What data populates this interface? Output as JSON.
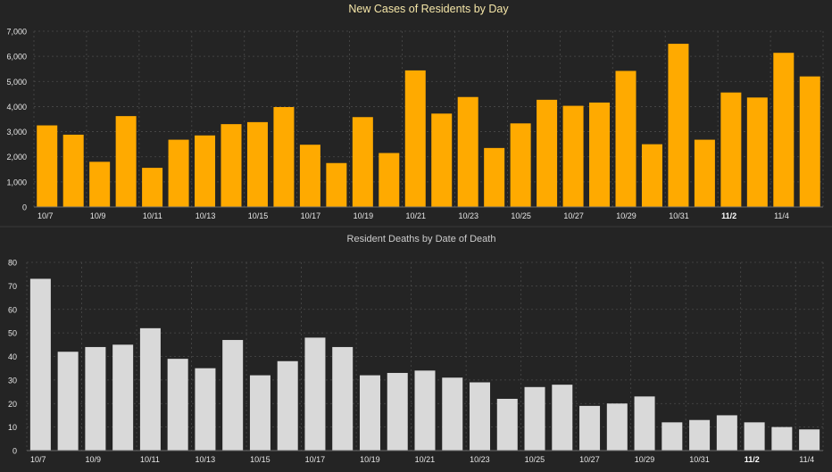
{
  "chart_data": [
    {
      "type": "bar",
      "title": "New Cases of Residents by Day",
      "xlabel": "",
      "ylabel": "",
      "ylim": [
        0,
        7000
      ],
      "yticks": [
        0,
        1000,
        2000,
        3000,
        4000,
        5000,
        6000,
        7000
      ],
      "ytick_labels": [
        "0",
        "1,000",
        "2,000",
        "3,000",
        "4,000",
        "5,000",
        "6,000",
        "7,000"
      ],
      "grid": true,
      "bar_color": "#FFAA00",
      "title_color": "#F5E6A8",
      "categories": [
        "10/7",
        "10/8",
        "10/9",
        "10/10",
        "10/11",
        "10/12",
        "10/13",
        "10/14",
        "10/15",
        "10/16",
        "10/17",
        "10/18",
        "10/19",
        "10/20",
        "10/21",
        "10/22",
        "10/23",
        "10/24",
        "10/25",
        "10/26",
        "10/27",
        "10/28",
        "10/29",
        "10/30",
        "10/31",
        "11/1",
        "11/2",
        "11/3",
        "11/4",
        "11/5"
      ],
      "values": [
        3250,
        2880,
        1800,
        3620,
        1560,
        2680,
        2850,
        3300,
        3380,
        3980,
        2480,
        1750,
        3580,
        2150,
        5440,
        3720,
        4380,
        2350,
        3330,
        4270,
        4030,
        4160,
        5420,
        2500,
        6500,
        2680,
        4560,
        4360,
        6140,
        5200
      ],
      "xtick_labels": [
        {
          "index": 0,
          "label": "10/7",
          "bold": false
        },
        {
          "index": 2,
          "label": "10/9",
          "bold": false
        },
        {
          "index": 4,
          "label": "10/11",
          "bold": false
        },
        {
          "index": 6,
          "label": "10/13",
          "bold": false
        },
        {
          "index": 8,
          "label": "10/15",
          "bold": false
        },
        {
          "index": 10,
          "label": "10/17",
          "bold": false
        },
        {
          "index": 12,
          "label": "10/19",
          "bold": false
        },
        {
          "index": 14,
          "label": "10/21",
          "bold": false
        },
        {
          "index": 16,
          "label": "10/23",
          "bold": false
        },
        {
          "index": 18,
          "label": "10/25",
          "bold": false
        },
        {
          "index": 20,
          "label": "10/27",
          "bold": false
        },
        {
          "index": 22,
          "label": "10/29",
          "bold": false
        },
        {
          "index": 24,
          "label": "10/31",
          "bold": false
        },
        {
          "index": 26,
          "label": "11/2",
          "bold": true
        },
        {
          "index": 28,
          "label": "11/4",
          "bold": false
        }
      ]
    },
    {
      "type": "bar",
      "title": "Resident Deaths by Date of Death",
      "xlabel": "",
      "ylabel": "",
      "ylim": [
        0,
        80
      ],
      "yticks": [
        0,
        10,
        20,
        30,
        40,
        50,
        60,
        70,
        80
      ],
      "ytick_labels": [
        "0",
        "10",
        "20",
        "30",
        "40",
        "50",
        "60",
        "70",
        "80"
      ],
      "grid": true,
      "bar_color": "#D9D9D9",
      "title_color": "#CCCCCC",
      "categories": [
        "10/7",
        "10/8",
        "10/9",
        "10/10",
        "10/11",
        "10/12",
        "10/13",
        "10/14",
        "10/15",
        "10/16",
        "10/17",
        "10/18",
        "10/19",
        "10/20",
        "10/21",
        "10/22",
        "10/23",
        "10/24",
        "10/25",
        "10/26",
        "10/27",
        "10/28",
        "10/29",
        "10/30",
        "10/31",
        "11/1",
        "11/2",
        "11/3",
        "11/4"
      ],
      "values": [
        73,
        42,
        44,
        45,
        52,
        39,
        35,
        47,
        32,
        38,
        48,
        44,
        32,
        33,
        34,
        31,
        29,
        22,
        27,
        28,
        19,
        20,
        23,
        12,
        13,
        15,
        12,
        10,
        9
      ],
      "xtick_labels": [
        {
          "index": 0,
          "label": "10/7",
          "bold": false
        },
        {
          "index": 2,
          "label": "10/9",
          "bold": false
        },
        {
          "index": 4,
          "label": "10/11",
          "bold": false
        },
        {
          "index": 6,
          "label": "10/13",
          "bold": false
        },
        {
          "index": 8,
          "label": "10/15",
          "bold": false
        },
        {
          "index": 10,
          "label": "10/17",
          "bold": false
        },
        {
          "index": 12,
          "label": "10/19",
          "bold": false
        },
        {
          "index": 14,
          "label": "10/21",
          "bold": false
        },
        {
          "index": 16,
          "label": "10/23",
          "bold": false
        },
        {
          "index": 18,
          "label": "10/25",
          "bold": false
        },
        {
          "index": 20,
          "label": "10/27",
          "bold": false
        },
        {
          "index": 22,
          "label": "10/29",
          "bold": false
        },
        {
          "index": 24,
          "label": "10/31",
          "bold": false
        },
        {
          "index": 26,
          "label": "11/2",
          "bold": true
        },
        {
          "index": 28,
          "label": "11/4",
          "bold": false
        }
      ]
    }
  ]
}
